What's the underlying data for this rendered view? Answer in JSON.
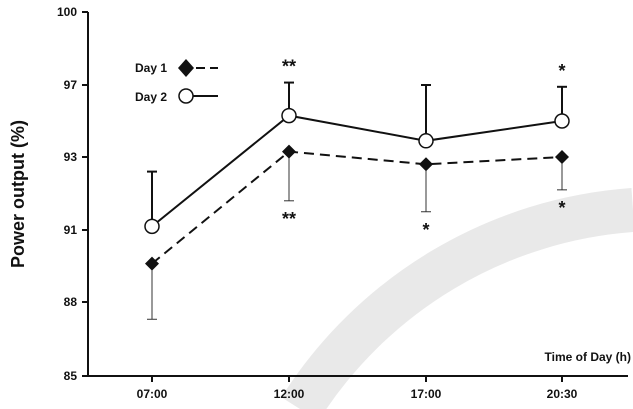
{
  "chart_data": {
    "type": "line",
    "title": "",
    "xlabel": "Time of Day (h)",
    "ylabel": "Power output (%)",
    "categories": [
      "07:00",
      "12:00",
      "17:00",
      "20:30"
    ],
    "yticks": [
      85,
      88,
      91,
      93,
      97,
      100
    ],
    "ylim": [
      85,
      100
    ],
    "grid": false,
    "legend_position": "top-left",
    "series": [
      {
        "name": "Day 1",
        "values": [
          89.6,
          93.3,
          92.8,
          93.0
        ],
        "error_lower": [
          2.3,
          1.5,
          1.3,
          0.9
        ],
        "error_upper": [
          0,
          0,
          0,
          0
        ],
        "line_style": "dashed",
        "marker": "filled-diamond",
        "color": "#111111"
      },
      {
        "name": "Day 2",
        "values": [
          91.1,
          95.3,
          93.9,
          95.0
        ],
        "error_lower": [
          0,
          0,
          0,
          0
        ],
        "error_upper": [
          1.5,
          1.8,
          3.1,
          1.9
        ],
        "line_style": "solid",
        "marker": "open-circle",
        "color": "#111111"
      }
    ],
    "annotations": [
      {
        "text": "**",
        "x": "12:00",
        "position": "above"
      },
      {
        "text": "*",
        "x": "20:30",
        "position": "above"
      },
      {
        "text": "**",
        "x": "12:00",
        "position": "below"
      },
      {
        "text": "*",
        "x": "17:00",
        "position": "below"
      },
      {
        "text": "*",
        "x": "20:30",
        "position": "below"
      }
    ]
  }
}
